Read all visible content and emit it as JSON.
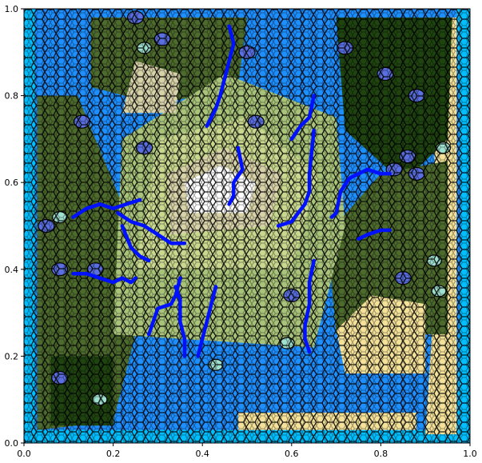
{
  "chart_data": {
    "type": "heatmap",
    "title": "",
    "xlabel": "",
    "ylabel": "",
    "xlim": [
      0.0,
      1.0
    ],
    "ylim": [
      0.0,
      1.0
    ],
    "x_ticks": [
      "0.0",
      "0.2",
      "0.4",
      "0.6",
      "0.8",
      "1.0"
    ],
    "y_ticks": [
      "0.0",
      "0.2",
      "0.4",
      "0.6",
      "0.8",
      "1.0"
    ],
    "x_tick_values": [
      0.0,
      0.2,
      0.4,
      0.6,
      0.8,
      1.0
    ],
    "y_tick_values": [
      0.0,
      0.2,
      0.4,
      0.6,
      0.8,
      1.0
    ],
    "grid": false,
    "legend": "none",
    "description_of_marks": "Voronoi-cell terrain map: ocean (blue), coast (light cyan/sand), lowland and forest greens, highland pale greens/beige, snow peaks (white), with blue river polylines.",
    "colors": {
      "deep_ocean": "#1e8fff",
      "shallow_water": "#00bfff",
      "lake": "#5a6fe0",
      "sand": "#f5e29a",
      "beach": "#e8d88a",
      "lowland": "#a9c47a",
      "forest": "#4e6b2e",
      "dark_forest": "#1f4410",
      "highland": "#c8d88f",
      "mountain": "#d8d2a9",
      "snow": "#ffffff",
      "mint": "#9fe0cf",
      "river": "#0011ff",
      "cell_edge": "#000000"
    },
    "regions": [
      {
        "name": "ocean-bottom-left",
        "color": "#1e8fff",
        "points": [
          [
            0.0,
            0.0
          ],
          [
            0.0,
            0.19
          ],
          [
            0.18,
            0.2
          ],
          [
            0.34,
            0.21
          ],
          [
            0.5,
            0.2
          ],
          [
            0.58,
            0.18
          ],
          [
            0.56,
            0.06
          ],
          [
            0.5,
            0.0
          ]
        ]
      },
      {
        "name": "ocean-bottom-right",
        "color": "#1e8fff",
        "points": [
          [
            0.56,
            0.0
          ],
          [
            0.6,
            0.17
          ],
          [
            0.68,
            0.2
          ],
          [
            0.76,
            0.16
          ],
          [
            0.82,
            0.06
          ],
          [
            0.85,
            0.0
          ]
        ]
      },
      {
        "name": "ocean-top-left",
        "color": "#1e8fff",
        "points": [
          [
            0.0,
            1.0
          ],
          [
            0.0,
            0.82
          ],
          [
            0.08,
            0.84
          ],
          [
            0.14,
            0.9
          ],
          [
            0.2,
            0.97
          ],
          [
            0.25,
            1.0
          ]
        ]
      },
      {
        "name": "ocean-top-mid",
        "color": "#1e8fff",
        "points": [
          [
            0.48,
            1.0
          ],
          [
            0.5,
            0.96
          ],
          [
            0.58,
            0.95
          ],
          [
            0.64,
            0.98
          ],
          [
            0.66,
            1.0
          ]
        ]
      },
      {
        "name": "ocean-right-border",
        "color": "#00bfff",
        "points": [
          [
            0.97,
            0.0
          ],
          [
            1.0,
            0.0
          ],
          [
            1.0,
            1.0
          ],
          [
            0.97,
            1.0
          ],
          [
            0.98,
            0.5
          ]
        ]
      },
      {
        "name": "ocean-bottom-border",
        "color": "#00bfff",
        "points": [
          [
            0.0,
            0.0
          ],
          [
            1.0,
            0.0
          ],
          [
            1.0,
            0.03
          ],
          [
            0.0,
            0.03
          ]
        ]
      },
      {
        "name": "ocean-left-border",
        "color": "#00bfff",
        "points": [
          [
            0.0,
            0.0
          ],
          [
            0.025,
            0.0
          ],
          [
            0.025,
            1.0
          ],
          [
            0.0,
            1.0
          ]
        ]
      },
      {
        "name": "sand-right-coast",
        "color": "#f5e29a",
        "points": [
          [
            0.9,
            0.02
          ],
          [
            0.97,
            0.02
          ],
          [
            0.97,
            0.98
          ],
          [
            0.9,
            0.98
          ],
          [
            0.93,
            0.5
          ]
        ]
      },
      {
        "name": "sand-bottom-coast",
        "color": "#f5e29a",
        "points": [
          [
            0.48,
            0.03
          ],
          [
            0.88,
            0.03
          ],
          [
            0.88,
            0.07
          ],
          [
            0.48,
            0.07
          ]
        ]
      },
      {
        "name": "forest-left",
        "color": "#4e6b2e",
        "points": [
          [
            0.03,
            0.03
          ],
          [
            0.2,
            0.05
          ],
          [
            0.25,
            0.25
          ],
          [
            0.22,
            0.55
          ],
          [
            0.12,
            0.8
          ],
          [
            0.03,
            0.8
          ]
        ]
      },
      {
        "name": "forest-top",
        "color": "#4e6b2e",
        "points": [
          [
            0.15,
            0.98
          ],
          [
            0.5,
            0.98
          ],
          [
            0.48,
            0.82
          ],
          [
            0.3,
            0.78
          ],
          [
            0.15,
            0.82
          ]
        ]
      },
      {
        "name": "forest-top-right",
        "color": "#1f4410",
        "points": [
          [
            0.7,
            0.98
          ],
          [
            0.96,
            0.98
          ],
          [
            0.95,
            0.7
          ],
          [
            0.85,
            0.6
          ],
          [
            0.72,
            0.72
          ]
        ]
      },
      {
        "name": "forest-right",
        "color": "#4e6b2e",
        "points": [
          [
            0.7,
            0.25
          ],
          [
            0.95,
            0.25
          ],
          [
            0.95,
            0.65
          ],
          [
            0.8,
            0.62
          ],
          [
            0.68,
            0.48
          ]
        ]
      },
      {
        "name": "lowland-center",
        "color": "#a9c47a",
        "points": [
          [
            0.2,
            0.25
          ],
          [
            0.65,
            0.22
          ],
          [
            0.72,
            0.5
          ],
          [
            0.7,
            0.75
          ],
          [
            0.45,
            0.85
          ],
          [
            0.22,
            0.7
          ]
        ]
      },
      {
        "name": "highland-center",
        "color": "#c8d88f",
        "points": [
          [
            0.25,
            0.4
          ],
          [
            0.6,
            0.4
          ],
          [
            0.66,
            0.62
          ],
          [
            0.5,
            0.75
          ],
          [
            0.3,
            0.7
          ]
        ]
      },
      {
        "name": "mountain-center",
        "color": "#d8d2a9",
        "points": [
          [
            0.33,
            0.48
          ],
          [
            0.55,
            0.5
          ],
          [
            0.58,
            0.62
          ],
          [
            0.45,
            0.68
          ],
          [
            0.32,
            0.62
          ]
        ]
      },
      {
        "name": "snow-peak",
        "color": "#ffffff",
        "points": [
          [
            0.37,
            0.53
          ],
          [
            0.5,
            0.53
          ],
          [
            0.52,
            0.6
          ],
          [
            0.44,
            0.64
          ],
          [
            0.36,
            0.6
          ]
        ]
      },
      {
        "name": "mountain-top-left",
        "color": "#d8d2a9",
        "points": [
          [
            0.22,
            0.76
          ],
          [
            0.34,
            0.76
          ],
          [
            0.35,
            0.85
          ],
          [
            0.25,
            0.88
          ]
        ]
      },
      {
        "name": "sand-bottom-right",
        "color": "#f5e29a",
        "points": [
          [
            0.72,
            0.16
          ],
          [
            0.9,
            0.16
          ],
          [
            0.9,
            0.32
          ],
          [
            0.78,
            0.34
          ],
          [
            0.7,
            0.26
          ]
        ]
      },
      {
        "name": "forest-bottom-left",
        "color": "#1f4410",
        "points": [
          [
            0.06,
            0.04
          ],
          [
            0.2,
            0.04
          ],
          [
            0.2,
            0.2
          ],
          [
            0.06,
            0.2
          ]
        ]
      }
    ],
    "lakes": [
      {
        "x": 0.31,
        "y": 0.93
      },
      {
        "x": 0.25,
        "y": 0.98
      },
      {
        "x": 0.13,
        "y": 0.74
      },
      {
        "x": 0.27,
        "y": 0.68
      },
      {
        "x": 0.52,
        "y": 0.74
      },
      {
        "x": 0.72,
        "y": 0.91
      },
      {
        "x": 0.81,
        "y": 0.85
      },
      {
        "x": 0.88,
        "y": 0.8
      },
      {
        "x": 0.88,
        "y": 0.62
      },
      {
        "x": 0.86,
        "y": 0.66
      },
      {
        "x": 0.05,
        "y": 0.5
      },
      {
        "x": 0.08,
        "y": 0.4
      },
      {
        "x": 0.85,
        "y": 0.38
      },
      {
        "x": 0.08,
        "y": 0.15
      },
      {
        "x": 0.16,
        "y": 0.4
      },
      {
        "x": 0.6,
        "y": 0.34
      },
      {
        "x": 0.83,
        "y": 0.63
      },
      {
        "x": 0.5,
        "y": 0.9
      }
    ],
    "mint_spots": [
      {
        "x": 0.27,
        "y": 0.91
      },
      {
        "x": 0.08,
        "y": 0.52
      },
      {
        "x": 0.59,
        "y": 0.23
      },
      {
        "x": 0.93,
        "y": 0.35
      },
      {
        "x": 0.92,
        "y": 0.42
      },
      {
        "x": 0.94,
        "y": 0.68
      },
      {
        "x": 0.17,
        "y": 0.1
      },
      {
        "x": 0.43,
        "y": 0.18
      }
    ],
    "rivers": [
      {
        "name": "river-top-mid",
        "x": [
          0.46,
          0.47,
          0.46,
          0.45,
          0.44,
          0.43,
          0.42,
          0.41
        ],
        "y": [
          0.96,
          0.92,
          0.88,
          0.84,
          0.8,
          0.77,
          0.75,
          0.73
        ]
      },
      {
        "name": "river-center-north",
        "x": [
          0.48,
          0.49,
          0.47,
          0.47,
          0.46
        ],
        "y": [
          0.68,
          0.63,
          0.6,
          0.57,
          0.55
        ]
      },
      {
        "name": "river-center-east",
        "x": [
          0.57,
          0.6,
          0.63,
          0.64,
          0.64,
          0.65
        ],
        "y": [
          0.5,
          0.51,
          0.55,
          0.58,
          0.62,
          0.72
        ]
      },
      {
        "name": "river-upper-right",
        "x": [
          0.6,
          0.62,
          0.64,
          0.65
        ],
        "y": [
          0.7,
          0.73,
          0.75,
          0.8
        ]
      },
      {
        "name": "river-east",
        "x": [
          0.69,
          0.7,
          0.71,
          0.73,
          0.75,
          0.77,
          0.8,
          0.82
        ],
        "y": [
          0.52,
          0.53,
          0.58,
          0.61,
          0.62,
          0.63,
          0.62,
          0.62
        ]
      },
      {
        "name": "river-east-lower",
        "x": [
          0.75,
          0.77,
          0.8,
          0.82
        ],
        "y": [
          0.47,
          0.48,
          0.49,
          0.49
        ]
      },
      {
        "name": "river-west",
        "x": [
          0.11,
          0.14,
          0.17,
          0.2,
          0.23,
          0.26
        ],
        "y": [
          0.52,
          0.54,
          0.55,
          0.54,
          0.55,
          0.56
        ]
      },
      {
        "name": "river-west-diagonal",
        "x": [
          0.21,
          0.24,
          0.27,
          0.3,
          0.33,
          0.36
        ],
        "y": [
          0.53,
          0.51,
          0.5,
          0.48,
          0.46,
          0.46
        ]
      },
      {
        "name": "river-west-down",
        "x": [
          0.22,
          0.24,
          0.26,
          0.28
        ],
        "y": [
          0.5,
          0.45,
          0.43,
          0.42
        ]
      },
      {
        "name": "river-southwest",
        "x": [
          0.11,
          0.14,
          0.17,
          0.2,
          0.22,
          0.24,
          0.25
        ],
        "y": [
          0.39,
          0.39,
          0.38,
          0.37,
          0.38,
          0.37,
          0.38
        ]
      },
      {
        "name": "river-south-1",
        "x": [
          0.35,
          0.34,
          0.33,
          0.3,
          0.29,
          0.28
        ],
        "y": [
          0.38,
          0.34,
          0.32,
          0.31,
          0.28,
          0.25
        ]
      },
      {
        "name": "river-south-2",
        "x": [
          0.34,
          0.35,
          0.35,
          0.36,
          0.36
        ],
        "y": [
          0.36,
          0.33,
          0.28,
          0.24,
          0.2
        ]
      },
      {
        "name": "river-south-3",
        "x": [
          0.43,
          0.42,
          0.41,
          0.4,
          0.39
        ],
        "y": [
          0.36,
          0.32,
          0.28,
          0.24,
          0.2
        ]
      },
      {
        "name": "river-south-east",
        "x": [
          0.65,
          0.64,
          0.64,
          0.63,
          0.63,
          0.64
        ],
        "y": [
          0.42,
          0.37,
          0.32,
          0.27,
          0.24,
          0.21
        ]
      }
    ]
  }
}
